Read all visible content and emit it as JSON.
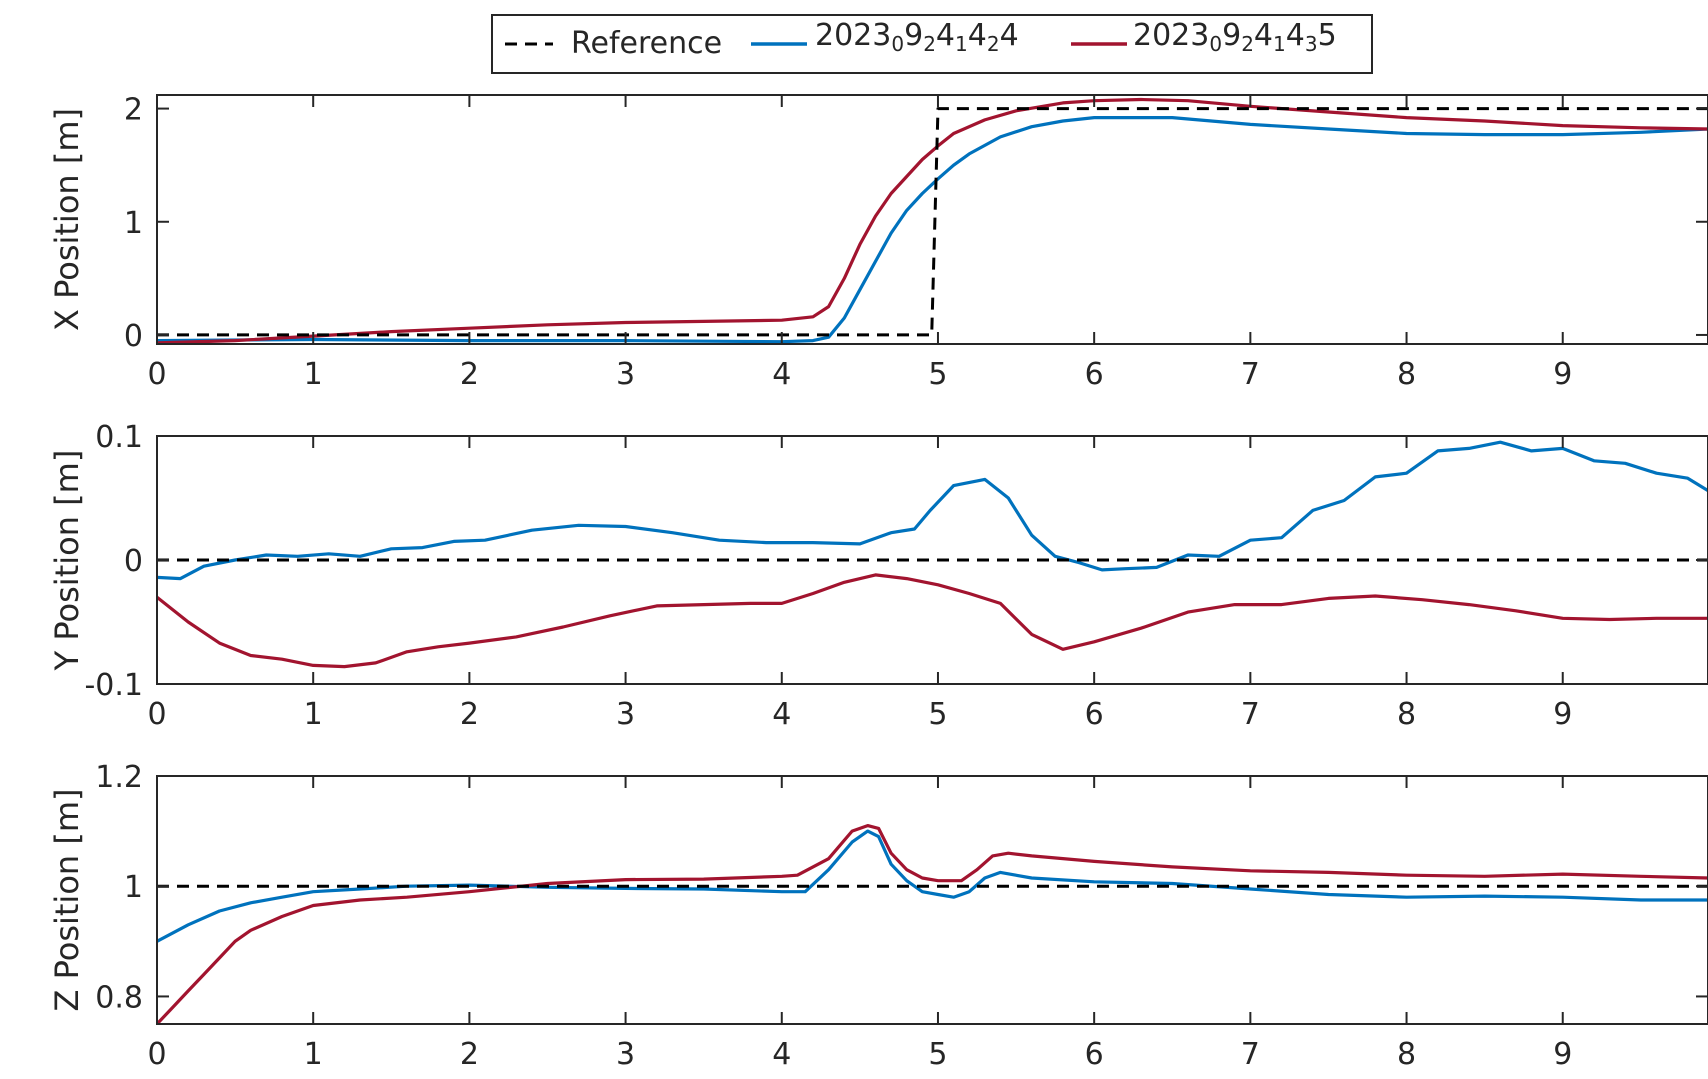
{
  "legend": {
    "reference_label": "Reference",
    "series_a_label": "2023_0 9_2 4_1 4_2 4",
    "series_b_label": "2023_0 9_2 4_1 4_3 5"
  },
  "colors": {
    "reference": "#000000",
    "series_a": "#0072BD",
    "series_b": "#A2142F"
  },
  "chart_data": [
    {
      "type": "line",
      "ylabel": "X Position [m]",
      "xlim": [
        0,
        9.93
      ],
      "ylim": [
        -0.08,
        2.12
      ],
      "xticks": [
        0,
        1,
        2,
        3,
        4,
        5,
        6,
        7,
        8,
        9
      ],
      "yticks": [
        0,
        1,
        2
      ],
      "ytick_labels": [
        "0",
        "1",
        "2"
      ],
      "series": [
        {
          "name": "Reference",
          "style": "dashed",
          "x": [
            0,
            4.94,
            4.96,
            5.0,
            9.93
          ],
          "y": [
            0,
            0,
            0.0,
            2,
            2
          ]
        },
        {
          "name": "2023_0 9_2 4_1 4_2 4",
          "x": [
            0,
            1,
            2,
            3,
            4,
            4.2,
            4.3,
            4.4,
            4.5,
            4.6,
            4.7,
            4.8,
            4.9,
            5.0,
            5.1,
            5.2,
            5.4,
            5.6,
            5.8,
            6.0,
            6.5,
            7.0,
            7.5,
            8.0,
            8.5,
            9.0,
            9.5,
            9.93
          ],
          "y": [
            -0.05,
            -0.04,
            -0.05,
            -0.05,
            -0.06,
            -0.05,
            -0.02,
            0.15,
            0.4,
            0.65,
            0.9,
            1.1,
            1.25,
            1.38,
            1.5,
            1.6,
            1.75,
            1.84,
            1.89,
            1.92,
            1.92,
            1.86,
            1.82,
            1.78,
            1.77,
            1.77,
            1.79,
            1.82
          ]
        },
        {
          "name": "2023_0 9_2 4_1 4_3 5",
          "x": [
            0,
            0.5,
            1,
            1.5,
            2,
            2.5,
            3,
            3.5,
            4,
            4.2,
            4.3,
            4.4,
            4.5,
            4.6,
            4.7,
            4.8,
            4.9,
            5.0,
            5.1,
            5.3,
            5.5,
            5.8,
            6.0,
            6.3,
            6.6,
            7.0,
            7.5,
            8.0,
            8.5,
            9.0,
            9.5,
            9.93
          ],
          "y": [
            -0.07,
            -0.05,
            -0.01,
            0.03,
            0.06,
            0.09,
            0.11,
            0.12,
            0.13,
            0.16,
            0.25,
            0.5,
            0.8,
            1.05,
            1.25,
            1.4,
            1.55,
            1.67,
            1.78,
            1.9,
            1.98,
            2.05,
            2.07,
            2.08,
            2.07,
            2.02,
            1.97,
            1.92,
            1.89,
            1.85,
            1.83,
            1.82
          ]
        }
      ]
    },
    {
      "type": "line",
      "ylabel": "Y Position [m]",
      "xlim": [
        0,
        9.93
      ],
      "ylim": [
        -0.1,
        0.1
      ],
      "xticks": [
        0,
        1,
        2,
        3,
        4,
        5,
        6,
        7,
        8,
        9
      ],
      "yticks": [
        -0.1,
        0,
        0.1
      ],
      "ytick_labels": [
        "-0.1",
        "0",
        "0.1"
      ],
      "series": [
        {
          "name": "Reference",
          "style": "dashed",
          "x": [
            0,
            9.93
          ],
          "y": [
            0,
            0
          ]
        },
        {
          "name": "2023_0 9_2 4_1 4_2 4",
          "x": [
            0,
            0.15,
            0.3,
            0.5,
            0.7,
            0.9,
            1.1,
            1.3,
            1.5,
            1.7,
            1.9,
            2.1,
            2.4,
            2.7,
            3.0,
            3.3,
            3.6,
            3.9,
            4.2,
            4.5,
            4.7,
            4.85,
            4.95,
            5.1,
            5.3,
            5.45,
            5.6,
            5.75,
            5.9,
            6.05,
            6.2,
            6.4,
            6.6,
            6.8,
            7.0,
            7.2,
            7.4,
            7.6,
            7.8,
            8.0,
            8.2,
            8.4,
            8.6,
            8.8,
            9.0,
            9.2,
            9.4,
            9.6,
            9.8,
            9.93
          ],
          "y": [
            -0.014,
            -0.015,
            -0.005,
            0.0,
            0.004,
            0.003,
            0.005,
            0.003,
            0.009,
            0.01,
            0.015,
            0.016,
            0.024,
            0.028,
            0.027,
            0.022,
            0.016,
            0.014,
            0.014,
            0.013,
            0.022,
            0.025,
            0.04,
            0.06,
            0.065,
            0.05,
            0.02,
            0.003,
            -0.002,
            -0.008,
            -0.007,
            -0.006,
            0.004,
            0.003,
            0.016,
            0.018,
            0.04,
            0.048,
            0.067,
            0.07,
            0.088,
            0.09,
            0.095,
            0.088,
            0.09,
            0.08,
            0.078,
            0.07,
            0.066,
            0.056
          ]
        },
        {
          "name": "2023_0 9_2 4_1 4_3 5",
          "x": [
            0,
            0.2,
            0.4,
            0.6,
            0.8,
            1.0,
            1.2,
            1.4,
            1.6,
            1.8,
            2.0,
            2.3,
            2.6,
            2.9,
            3.2,
            3.5,
            3.8,
            4.0,
            4.2,
            4.4,
            4.6,
            4.8,
            5.0,
            5.2,
            5.4,
            5.6,
            5.8,
            6.0,
            6.3,
            6.6,
            6.9,
            7.2,
            7.5,
            7.8,
            8.1,
            8.4,
            8.7,
            9.0,
            9.3,
            9.6,
            9.93
          ],
          "y": [
            -0.03,
            -0.05,
            -0.067,
            -0.077,
            -0.08,
            -0.085,
            -0.086,
            -0.083,
            -0.074,
            -0.07,
            -0.067,
            -0.062,
            -0.054,
            -0.045,
            -0.037,
            -0.036,
            -0.035,
            -0.035,
            -0.027,
            -0.018,
            -0.012,
            -0.015,
            -0.02,
            -0.027,
            -0.035,
            -0.06,
            -0.072,
            -0.066,
            -0.055,
            -0.042,
            -0.036,
            -0.036,
            -0.031,
            -0.029,
            -0.032,
            -0.036,
            -0.041,
            -0.047,
            -0.048,
            -0.047,
            -0.047
          ]
        }
      ]
    },
    {
      "type": "line",
      "ylabel": "Z Position [m]",
      "xlim": [
        0,
        9.93
      ],
      "ylim": [
        0.75,
        1.2
      ],
      "xticks": [
        0,
        1,
        2,
        3,
        4,
        5,
        6,
        7,
        8,
        9
      ],
      "yticks": [
        0.8,
        1,
        1.2
      ],
      "ytick_labels": [
        "0.8",
        "1",
        "1.2"
      ],
      "series": [
        {
          "name": "Reference",
          "style": "dashed",
          "x": [
            0,
            9.93
          ],
          "y": [
            1,
            1
          ]
        },
        {
          "name": "2023_0 9_2 4_1 4_2 4",
          "x": [
            0,
            0.2,
            0.4,
            0.6,
            0.8,
            1.0,
            1.3,
            1.6,
            2.0,
            2.5,
            3.0,
            3.5,
            4.0,
            4.15,
            4.3,
            4.45,
            4.55,
            4.62,
            4.7,
            4.8,
            4.9,
            5.0,
            5.1,
            5.2,
            5.3,
            5.4,
            5.6,
            6.0,
            6.5,
            7.0,
            7.5,
            8.0,
            8.5,
            9.0,
            9.5,
            9.93
          ],
          "y": [
            0.9,
            0.93,
            0.955,
            0.97,
            0.98,
            0.99,
            0.995,
            1.0,
            1.002,
            0.998,
            0.996,
            0.995,
            0.99,
            0.99,
            1.03,
            1.08,
            1.1,
            1.09,
            1.04,
            1.01,
            0.99,
            0.985,
            0.98,
            0.99,
            1.015,
            1.025,
            1.015,
            1.008,
            1.005,
            0.995,
            0.985,
            0.98,
            0.982,
            0.98,
            0.975,
            0.975
          ]
        },
        {
          "name": "2023_0 9_2 4_1 4_3 5",
          "x": [
            0,
            0.1,
            0.2,
            0.3,
            0.4,
            0.5,
            0.6,
            0.8,
            1.0,
            1.3,
            1.6,
            2.0,
            2.5,
            3.0,
            3.5,
            4.0,
            4.1,
            4.3,
            4.45,
            4.55,
            4.62,
            4.7,
            4.8,
            4.9,
            5.0,
            5.15,
            5.25,
            5.35,
            5.45,
            5.6,
            6.0,
            6.5,
            7.0,
            7.5,
            8.0,
            8.5,
            9.0,
            9.5,
            9.93
          ],
          "y": [
            0.75,
            0.78,
            0.81,
            0.84,
            0.87,
            0.9,
            0.92,
            0.945,
            0.965,
            0.975,
            0.98,
            0.99,
            1.005,
            1.012,
            1.013,
            1.018,
            1.02,
            1.05,
            1.1,
            1.11,
            1.105,
            1.06,
            1.03,
            1.015,
            1.01,
            1.01,
            1.03,
            1.055,
            1.06,
            1.055,
            1.045,
            1.035,
            1.028,
            1.025,
            1.02,
            1.018,
            1.022,
            1.018,
            1.015
          ]
        }
      ]
    }
  ]
}
